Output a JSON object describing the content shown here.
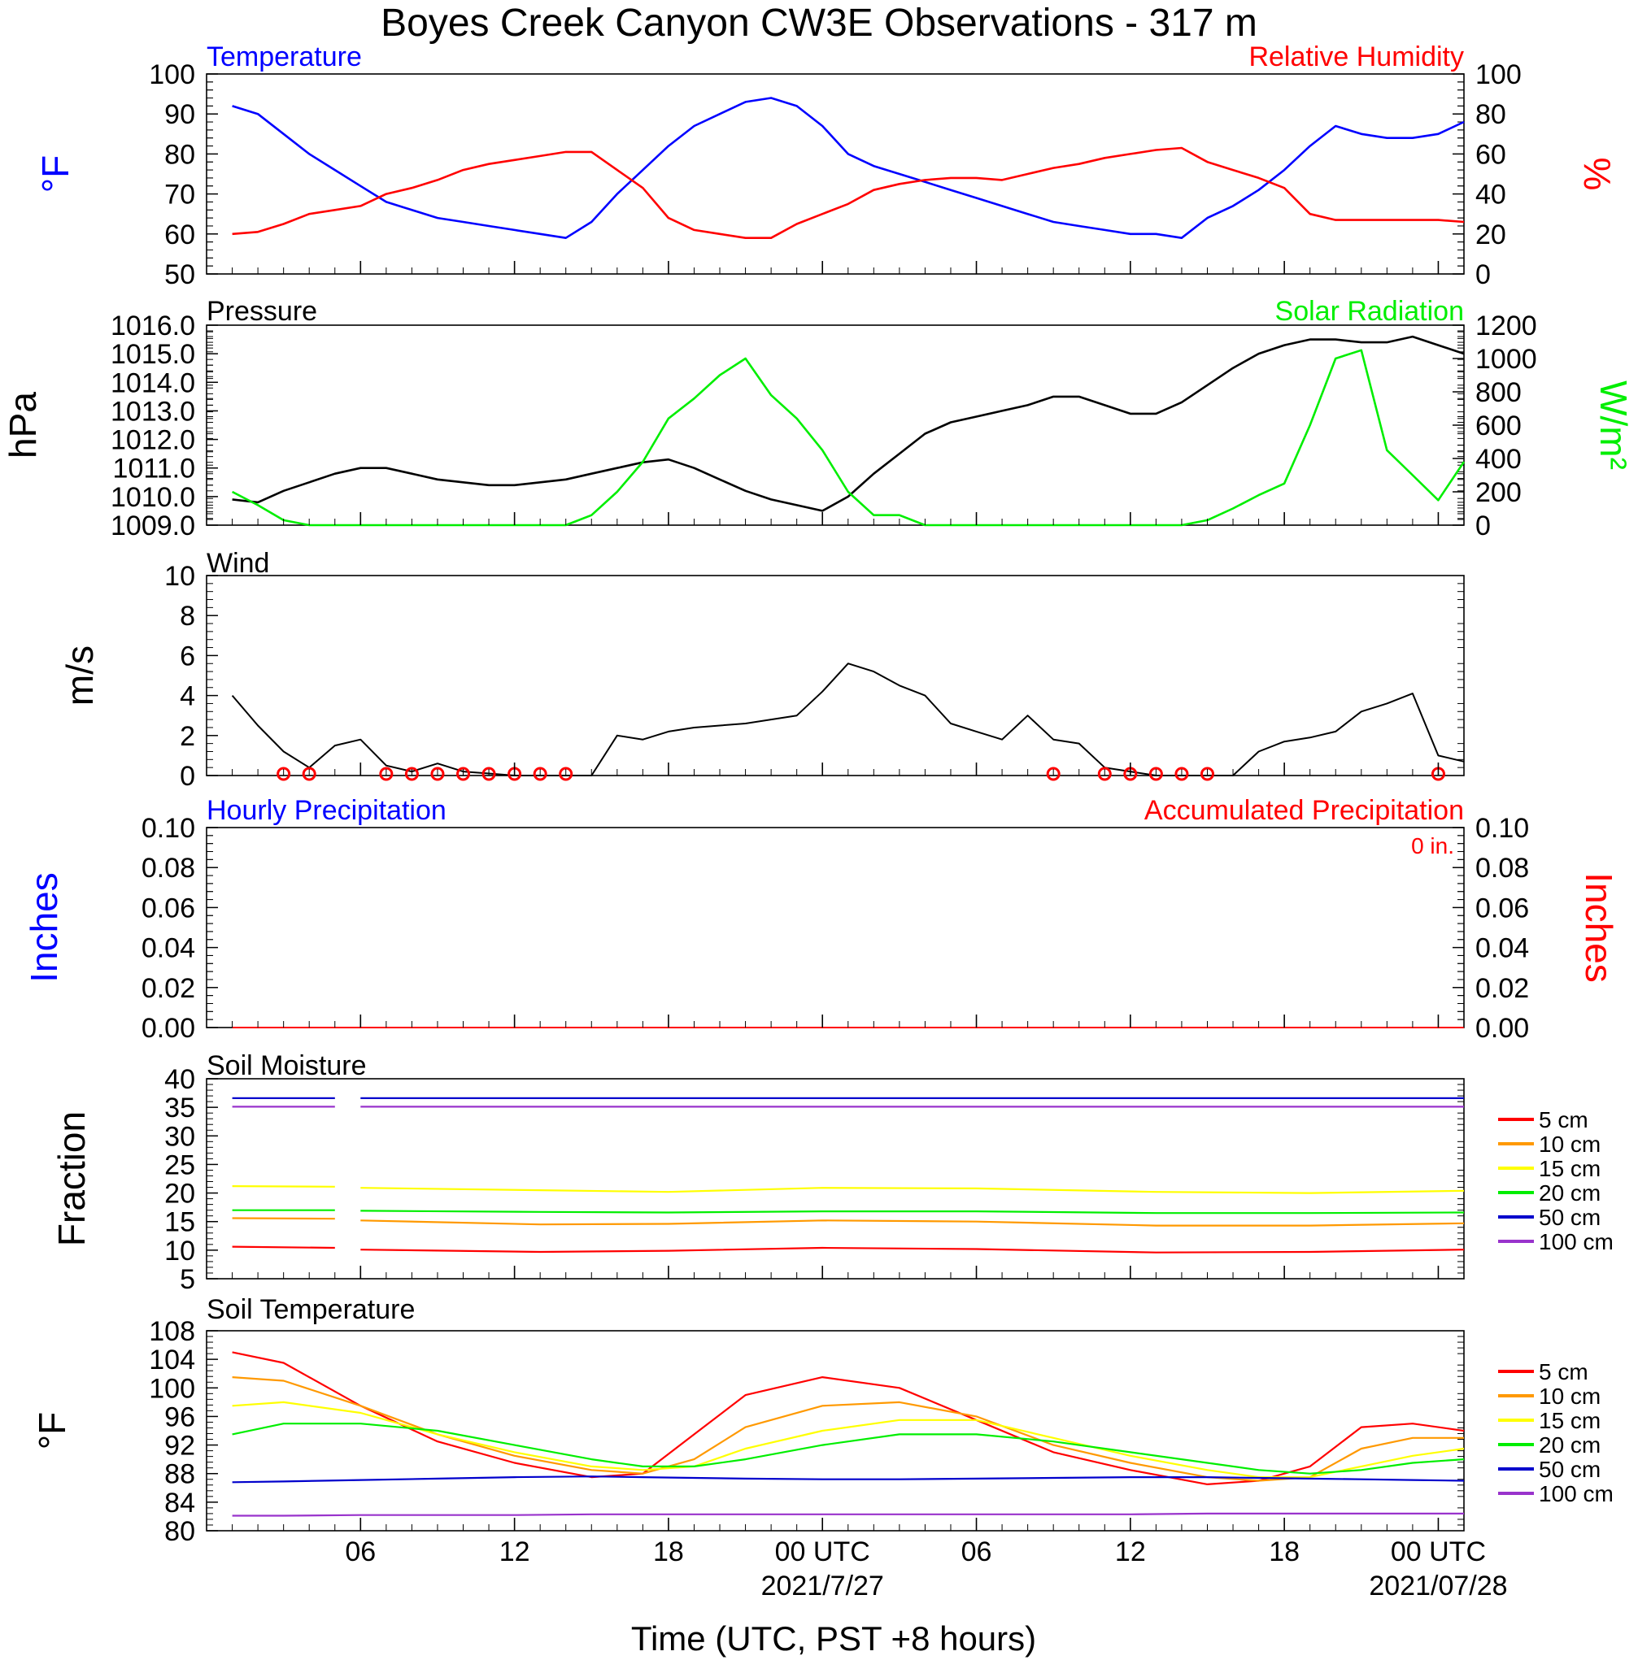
{
  "title": "Boyes Creek Canyon CW3E Observations - 317 m",
  "xlabel": "Time (UTC, PST +8 hours)",
  "colors": {
    "temperature": "#0000ff",
    "humidity": "#ff0000",
    "pressure": "#000000",
    "solar": "#00ee00",
    "wind": "#000000",
    "barb": "#ff0000",
    "precip_hourly": "#0000ff",
    "precip_accum": "#ff0000",
    "depths": [
      "#ff0000",
      "#ff9900",
      "#ffff00",
      "#00ee00",
      "#0000cc",
      "#9933cc"
    ]
  },
  "x_ticks": [
    "06",
    "12",
    "18",
    "00 UTC",
    "06",
    "12",
    "18",
    "00 UTC"
  ],
  "x_dates": [
    "2021/7/27",
    "2021/07/28"
  ],
  "panels": {
    "temperature": {
      "left_title": "Temperature",
      "right_title": "Relative Humidity",
      "left_unit": "°F",
      "right_unit": "%",
      "left_ticks": [
        "100",
        "90",
        "80",
        "70",
        "60",
        "50"
      ],
      "right_ticks": [
        "100",
        "80",
        "60",
        "40",
        "20",
        "0"
      ]
    },
    "pressure": {
      "left_title": "Pressure",
      "right_title": "Solar Radiation",
      "left_unit": "hPa",
      "right_unit": "W/m²",
      "left_ticks": [
        "1016.0",
        "1015.0",
        "1014.0",
        "1013.0",
        "1012.0",
        "1011.0",
        "1010.0",
        "1009.0"
      ],
      "right_ticks": [
        "1200",
        "1000",
        "800",
        "600",
        "400",
        "200",
        "0"
      ]
    },
    "wind": {
      "left_title": "Wind",
      "left_unit": "m/s",
      "left_ticks": [
        "10",
        "8",
        "6",
        "4",
        "2",
        "0"
      ]
    },
    "precip": {
      "left_title": "Hourly Precipitation",
      "right_title": "Accumulated Precipitation",
      "total_label": "0 in.",
      "left_unit": "Inches",
      "right_unit": "Inches",
      "left_ticks": [
        "0.10",
        "0.08",
        "0.06",
        "0.04",
        "0.02",
        "0.00"
      ],
      "right_ticks": [
        "0.10",
        "0.08",
        "0.06",
        "0.04",
        "0.02",
        "0.00"
      ]
    },
    "soil_moisture": {
      "left_title": "Soil Moisture",
      "left_unit": "Fraction",
      "left_ticks": [
        "40",
        "35",
        "30",
        "25",
        "20",
        "15",
        "10",
        "5"
      ],
      "legend": [
        "5 cm",
        "10 cm",
        "15 cm",
        "20 cm",
        "50 cm",
        "100 cm"
      ]
    },
    "soil_temperature": {
      "left_title": "Soil Temperature",
      "left_unit": "°F",
      "left_ticks": [
        "108",
        "104",
        "100",
        "96",
        "92",
        "88",
        "84",
        "80"
      ],
      "legend": [
        "5 cm",
        "10 cm",
        "15 cm",
        "20 cm",
        "50 cm",
        "100 cm"
      ]
    }
  },
  "chart_data": [
    {
      "type": "line",
      "title": "Temperature",
      "ylabel": "°F",
      "ylim": [
        50,
        100
      ],
      "x_hours": [
        1,
        2,
        3,
        4,
        5,
        6,
        7,
        8,
        9,
        10,
        11,
        12,
        13,
        14,
        15,
        16,
        17,
        18,
        19,
        20,
        21,
        22,
        23,
        24,
        25,
        26,
        27,
        28,
        29,
        30,
        31,
        32,
        33,
        34,
        35,
        36,
        37,
        38,
        39,
        40,
        41,
        42,
        43,
        44,
        45,
        46,
        47,
        48,
        49
      ],
      "series": [
        {
          "name": "Temperature",
          "axis": "left",
          "values": [
            92,
            90,
            85,
            80,
            76,
            72,
            68,
            66,
            64,
            63,
            62,
            61,
            60,
            59,
            63,
            70,
            76,
            82,
            87,
            90,
            93,
            94,
            92,
            87,
            80,
            77,
            75,
            73,
            71,
            69,
            67,
            65,
            63,
            62,
            61,
            60,
            60,
            59,
            64,
            67,
            71,
            76,
            82,
            87,
            85,
            84,
            84,
            85,
            88
          ]
        },
        {
          "name": "Relative Humidity",
          "axis": "right",
          "values": [
            20,
            21,
            25,
            30,
            32,
            34,
            40,
            43,
            47,
            52,
            55,
            57,
            59,
            61,
            61,
            52,
            43,
            28,
            22,
            20,
            18,
            18,
            25,
            30,
            35,
            42,
            45,
            47,
            48,
            48,
            47,
            50,
            53,
            55,
            58,
            60,
            62,
            63,
            56,
            52,
            48,
            43,
            30,
            27,
            27,
            27,
            27,
            27,
            26
          ]
        }
      ],
      "right_ylim": [
        0,
        100
      ]
    },
    {
      "type": "line",
      "title": "Pressure",
      "ylabel": "hPa",
      "ylim": [
        1009.0,
        1016.0
      ],
      "x_hours": [
        1,
        2,
        3,
        4,
        5,
        6,
        7,
        8,
        9,
        10,
        11,
        12,
        13,
        14,
        15,
        16,
        17,
        18,
        19,
        20,
        21,
        22,
        23,
        24,
        25,
        26,
        27,
        28,
        29,
        30,
        31,
        32,
        33,
        34,
        35,
        36,
        37,
        38,
        39,
        40,
        41,
        42,
        43,
        44,
        45,
        46,
        47,
        48,
        49
      ],
      "series": [
        {
          "name": "Pressure",
          "axis": "left",
          "values": [
            1009.9,
            1009.8,
            1010.2,
            1010.5,
            1010.8,
            1011.0,
            1011.0,
            1010.8,
            1010.6,
            1010.5,
            1010.4,
            1010.4,
            1010.5,
            1010.6,
            1010.8,
            1011.0,
            1011.2,
            1011.3,
            1011.0,
            1010.6,
            1010.2,
            1009.9,
            1009.7,
            1009.5,
            1010.0,
            1010.8,
            1011.5,
            1012.2,
            1012.6,
            1012.8,
            1013.0,
            1013.2,
            1013.5,
            1013.5,
            1013.2,
            1012.9,
            1012.9,
            1013.3,
            1013.9,
            1014.5,
            1015.0,
            1015.3,
            1015.5,
            1015.5,
            1015.4,
            1015.4,
            1015.6,
            1015.3,
            1015.0
          ]
        },
        {
          "name": "Solar Radiation",
          "axis": "right",
          "values": [
            200,
            120,
            30,
            0,
            0,
            0,
            0,
            0,
            0,
            0,
            0,
            0,
            0,
            0,
            60,
            200,
            380,
            640,
            760,
            900,
            1000,
            780,
            640,
            450,
            200,
            60,
            60,
            0,
            0,
            0,
            0,
            0,
            0,
            0,
            0,
            0,
            0,
            0,
            30,
            100,
            180,
            250,
            600,
            1000,
            1050,
            450,
            300,
            150,
            380
          ]
        }
      ],
      "right_ylim": [
        0,
        1200
      ]
    },
    {
      "type": "line",
      "title": "Wind",
      "ylabel": "m/s",
      "ylim": [
        0,
        10
      ],
      "x_hours": [
        1,
        2,
        3,
        4,
        5,
        6,
        7,
        8,
        9,
        10,
        11,
        12,
        13,
        14,
        15,
        16,
        17,
        18,
        19,
        20,
        21,
        22,
        23,
        24,
        25,
        26,
        27,
        28,
        29,
        30,
        31,
        32,
        33,
        34,
        35,
        36,
        37,
        38,
        39,
        40,
        41,
        42,
        43,
        44,
        45,
        46,
        47,
        48,
        49
      ],
      "series": [
        {
          "name": "Wind speed",
          "values": [
            4.0,
            2.5,
            1.2,
            0.4,
            1.5,
            1.8,
            0.5,
            0.2,
            0.6,
            0.2,
            0.1,
            0.0,
            0.0,
            0.0,
            0.0,
            2.0,
            1.8,
            2.2,
            2.4,
            2.5,
            2.6,
            2.8,
            3.0,
            4.2,
            5.6,
            5.2,
            4.5,
            4.0,
            2.6,
            2.2,
            1.8,
            3.0,
            1.8,
            1.6,
            0.4,
            0.2,
            0.0,
            0.0,
            0.0,
            0.0,
            1.2,
            1.7,
            1.9,
            2.2,
            3.2,
            3.6,
            4.1,
            1.0,
            0.7
          ]
        }
      ],
      "calm_circles_hours": [
        3,
        4,
        7,
        8,
        9,
        10,
        11,
        12,
        13,
        14,
        33,
        35,
        36,
        37,
        38,
        39,
        48
      ]
    },
    {
      "type": "line",
      "title": "Hourly Precipitation",
      "ylabel": "Inches",
      "ylim": [
        0,
        0.1
      ],
      "x_hours": [
        1,
        49
      ],
      "series": [
        {
          "name": "Hourly Precipitation",
          "values": [
            0,
            0
          ]
        },
        {
          "name": "Accumulated Precipitation",
          "values": [
            0,
            0
          ]
        }
      ]
    },
    {
      "type": "line",
      "title": "Soil Moisture",
      "ylabel": "Fraction",
      "ylim": [
        5,
        40
      ],
      "x_hours": [
        1,
        5,
        6,
        13,
        18,
        24,
        30,
        37,
        43,
        49
      ],
      "series": [
        {
          "name": "5 cm",
          "values": [
            10.6,
            10.4,
            10.1,
            9.7,
            9.9,
            10.4,
            10.2,
            9.6,
            9.7,
            10.1
          ]
        },
        {
          "name": "10 cm",
          "values": [
            15.6,
            15.5,
            15.2,
            14.5,
            14.6,
            15.2,
            15.0,
            14.3,
            14.3,
            14.7
          ]
        },
        {
          "name": "15 cm",
          "values": [
            21.2,
            21.1,
            20.9,
            20.5,
            20.2,
            20.9,
            20.8,
            20.2,
            20.0,
            20.4
          ]
        },
        {
          "name": "20 cm",
          "values": [
            17.0,
            17.0,
            16.9,
            16.7,
            16.6,
            16.8,
            16.8,
            16.5,
            16.5,
            16.6
          ]
        },
        {
          "name": "50 cm",
          "values": [
            36.6,
            36.6,
            36.6,
            36.6,
            36.6,
            36.6,
            36.6,
            36.6,
            36.6,
            36.6
          ]
        },
        {
          "name": "100 cm",
          "values": [
            35.1,
            35.1,
            35.1,
            35.1,
            35.1,
            35.1,
            35.1,
            35.1,
            35.1,
            35.1
          ]
        }
      ],
      "gap_hours": [
        5,
        6
      ]
    },
    {
      "type": "line",
      "title": "Soil Temperature",
      "ylabel": "°F",
      "ylim": [
        80,
        108
      ],
      "x_hours": [
        1,
        3,
        6,
        9,
        12,
        15,
        17,
        19,
        21,
        24,
        27,
        30,
        33,
        36,
        39,
        41,
        43,
        45,
        47,
        49
      ],
      "series": [
        {
          "name": "5 cm",
          "values": [
            105.0,
            103.5,
            97.5,
            92.5,
            89.5,
            87.5,
            88.0,
            93.5,
            99.0,
            101.5,
            100.0,
            95.5,
            91.0,
            88.5,
            86.5,
            87.0,
            89.0,
            94.5,
            95.0,
            94.0
          ]
        },
        {
          "name": "10 cm",
          "values": [
            101.5,
            101.0,
            97.5,
            93.5,
            90.5,
            88.5,
            88.0,
            90.0,
            94.5,
            97.5,
            98.0,
            96.0,
            92.0,
            89.5,
            87.5,
            87.0,
            87.5,
            91.5,
            93.0,
            93.0
          ]
        },
        {
          "name": "15 cm",
          "values": [
            97.5,
            98.0,
            96.5,
            93.5,
            91.0,
            89.0,
            88.5,
            89.0,
            91.5,
            94.0,
            95.5,
            95.5,
            93.0,
            90.5,
            88.5,
            87.5,
            87.5,
            89.0,
            90.5,
            91.5
          ]
        },
        {
          "name": "20 cm",
          "values": [
            93.5,
            95.0,
            95.0,
            94.0,
            92.0,
            90.0,
            89.0,
            89.0,
            90.0,
            92.0,
            93.5,
            93.5,
            92.5,
            91.0,
            89.5,
            88.5,
            88.0,
            88.5,
            89.5,
            90.0
          ]
        },
        {
          "name": "50 cm",
          "values": [
            86.8,
            86.9,
            87.1,
            87.3,
            87.5,
            87.6,
            87.5,
            87.4,
            87.3,
            87.2,
            87.2,
            87.3,
            87.4,
            87.5,
            87.5,
            87.4,
            87.3,
            87.2,
            87.1,
            87.0
          ]
        },
        {
          "name": "100 cm",
          "values": [
            82.1,
            82.1,
            82.2,
            82.2,
            82.2,
            82.3,
            82.3,
            82.3,
            82.3,
            82.3,
            82.3,
            82.3,
            82.3,
            82.3,
            82.4,
            82.4,
            82.4,
            82.4,
            82.4,
            82.4
          ]
        }
      ]
    }
  ]
}
